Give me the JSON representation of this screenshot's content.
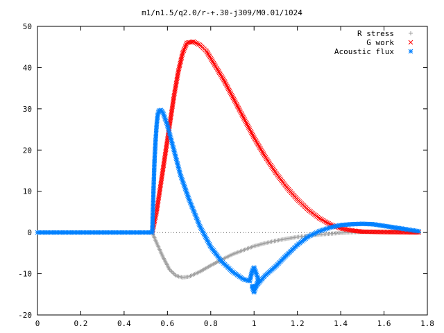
{
  "chart_data": {
    "type": "scatter",
    "title": "m1/n1.5/q2.0/r-+.30-j309/M0.01/1024",
    "xlabel": "",
    "ylabel": "",
    "xlim": [
      0,
      1.8
    ],
    "ylim": [
      -20,
      50
    ],
    "x_ticks": [
      "0",
      "0.2",
      "0.4",
      "0.6",
      "0.8",
      "1",
      "1.2",
      "1.4",
      "1.6",
      "1.8"
    ],
    "y_ticks": [
      "-20",
      "-10",
      "0",
      "10",
      "20",
      "30",
      "40",
      "50"
    ],
    "grid": false,
    "legend_position": "top-right",
    "series": [
      {
        "name": "R stress",
        "marker": "+",
        "color": "#a0a0a0",
        "points": [
          [
            0,
            0
          ],
          [
            0.53,
            0
          ],
          [
            0.55,
            -2.5
          ],
          [
            0.58,
            -6
          ],
          [
            0.61,
            -9
          ],
          [
            0.64,
            -10.5
          ],
          [
            0.67,
            -10.9
          ],
          [
            0.7,
            -10.7
          ],
          [
            0.75,
            -9.5
          ],
          [
            0.8,
            -8
          ],
          [
            0.85,
            -6.6
          ],
          [
            0.9,
            -5.3
          ],
          [
            0.95,
            -4.3
          ],
          [
            1.0,
            -3.3
          ],
          [
            1.05,
            -2.6
          ],
          [
            1.1,
            -2.0
          ],
          [
            1.15,
            -1.5
          ],
          [
            1.2,
            -1.1
          ],
          [
            1.25,
            -0.8
          ],
          [
            1.3,
            -0.5
          ],
          [
            1.35,
            -0.3
          ],
          [
            1.4,
            -0.1
          ],
          [
            1.45,
            0.05
          ],
          [
            1.5,
            0.15
          ],
          [
            1.55,
            0.2
          ],
          [
            1.6,
            0.22
          ],
          [
            1.65,
            0.2
          ],
          [
            1.7,
            0.15
          ],
          [
            1.76,
            0.1
          ]
        ]
      },
      {
        "name": "G work",
        "marker": "x",
        "color": "#ff0000",
        "points": [
          [
            0.53,
            0
          ],
          [
            0.55,
            5
          ],
          [
            0.57,
            12
          ],
          [
            0.59,
            19
          ],
          [
            0.61,
            26
          ],
          [
            0.63,
            33
          ],
          [
            0.65,
            39
          ],
          [
            0.67,
            43.5
          ],
          [
            0.69,
            46
          ],
          [
            0.72,
            46.3
          ],
          [
            0.75,
            45.5
          ],
          [
            0.78,
            44
          ],
          [
            0.82,
            40.5
          ],
          [
            0.86,
            37
          ],
          [
            0.9,
            33
          ],
          [
            0.95,
            28
          ],
          [
            1.0,
            23
          ],
          [
            1.05,
            18.5
          ],
          [
            1.1,
            14.5
          ],
          [
            1.15,
            11
          ],
          [
            1.2,
            8
          ],
          [
            1.25,
            5.5
          ],
          [
            1.3,
            3.5
          ],
          [
            1.35,
            2.0
          ],
          [
            1.4,
            1.0
          ],
          [
            1.45,
            0.5
          ],
          [
            1.5,
            0.2
          ],
          [
            1.6,
            0.1
          ],
          [
            1.7,
            0.05
          ],
          [
            1.76,
            0.0
          ]
        ]
      },
      {
        "name": "Acoustic flux",
        "marker": "*",
        "color": "#0080ff",
        "points": [
          [
            0,
            0
          ],
          [
            0.53,
            0
          ],
          [
            0.535,
            9
          ],
          [
            0.54,
            17
          ],
          [
            0.545,
            22
          ],
          [
            0.55,
            26
          ],
          [
            0.555,
            28.5
          ],
          [
            0.56,
            29.5
          ],
          [
            0.57,
            29.7
          ],
          [
            0.58,
            29
          ],
          [
            0.6,
            26
          ],
          [
            0.63,
            20
          ],
          [
            0.66,
            14
          ],
          [
            0.7,
            8
          ],
          [
            0.75,
            1.5
          ],
          [
            0.8,
            -3.5
          ],
          [
            0.85,
            -7
          ],
          [
            0.9,
            -9.5
          ],
          [
            0.95,
            -11.3
          ],
          [
            0.98,
            -11.8
          ],
          [
            0.99,
            -9.5
          ],
          [
            1.0,
            -8.5
          ],
          [
            1.01,
            -10
          ],
          [
            1.02,
            -11.3
          ],
          [
            1.0,
            -14.5
          ],
          [
            0.99,
            -13
          ],
          [
            1.01,
            -13
          ],
          [
            1.05,
            -10.5
          ],
          [
            1.1,
            -8.2
          ],
          [
            1.15,
            -5.5
          ],
          [
            1.2,
            -3
          ],
          [
            1.25,
            -1
          ],
          [
            1.3,
            0.3
          ],
          [
            1.35,
            1.2
          ],
          [
            1.4,
            1.8
          ],
          [
            1.45,
            2.0
          ],
          [
            1.5,
            2.1
          ],
          [
            1.55,
            2.0
          ],
          [
            1.6,
            1.6
          ],
          [
            1.65,
            1.2
          ],
          [
            1.7,
            0.8
          ],
          [
            1.76,
            0.3
          ]
        ]
      }
    ]
  }
}
